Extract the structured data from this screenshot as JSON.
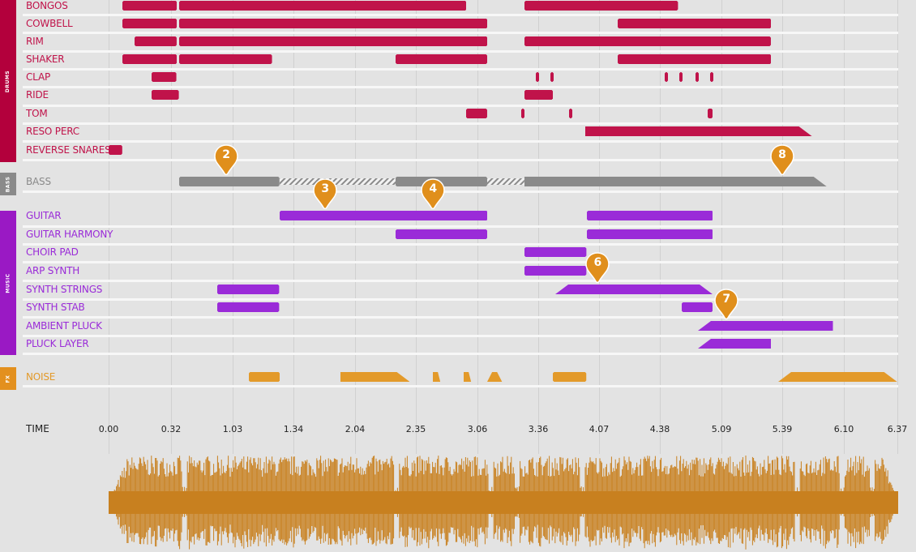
{
  "sections": [
    {
      "id": "drums",
      "label": "DRUMS",
      "color": "#b3003c"
    },
    {
      "id": "bass",
      "label": "BASS",
      "color": "#8a8a8a"
    },
    {
      "id": "music",
      "label": "MUSIC",
      "color": "#9a19c4"
    },
    {
      "id": "fx",
      "label": "FX",
      "color": "#e3901e"
    }
  ],
  "colors": {
    "drums": "#c0134a",
    "bass": "#8a8a8a",
    "music": "#9a2bd8",
    "fx": "#e39a2a",
    "marker": "#e08f1c",
    "waveform": "#c8801f",
    "background": "#e3e3e3"
  },
  "tracks": [
    {
      "label": "BONGOS",
      "section": "drums",
      "clips": [
        [
          0.11,
          0.55
        ],
        [
          0.57,
          2.89
        ],
        [
          3.36,
          4.6
        ]
      ]
    },
    {
      "label": "COWBELL",
      "section": "drums",
      "clips": [
        [
          0.11,
          0.55
        ],
        [
          0.57,
          3.06
        ],
        [
          4.11,
          5.35
        ]
      ]
    },
    {
      "label": "RIM",
      "section": "drums",
      "clips": [
        [
          0.21,
          0.55
        ],
        [
          0.57,
          3.06
        ],
        [
          3.36,
          5.35
        ]
      ]
    },
    {
      "label": "SHAKER",
      "section": "drums",
      "clips": [
        [
          0.11,
          0.55
        ],
        [
          0.57,
          1.32
        ],
        [
          2.32,
          3.06
        ],
        [
          4.11,
          5.35
        ]
      ]
    },
    {
      "label": "CLAP",
      "section": "drums",
      "clips": [
        [
          0.35,
          0.55
        ],
        [
          3.45,
          3.47
        ],
        [
          3.57,
          3.59
        ],
        [
          4.49,
          4.51
        ],
        [
          4.61,
          4.63
        ],
        [
          4.74,
          4.76
        ],
        [
          4.86,
          4.88
        ]
      ]
    },
    {
      "label": "RIDE",
      "section": "drums",
      "clips": [
        [
          0.35,
          0.57
        ],
        [
          3.36,
          3.59
        ]
      ]
    },
    {
      "label": "TOM",
      "section": "drums",
      "clips": [
        [
          2.89,
          3.06
        ],
        [
          3.33,
          3.35
        ],
        [
          3.72,
          3.74
        ],
        [
          4.84,
          4.88
        ]
      ]
    },
    {
      "label": "RESO PERC",
      "section": "drums",
      "clips": [
        [
          3.85,
          5.68,
          "ramp-down"
        ]
      ]
    },
    {
      "label": "REVERSE SNARES",
      "section": "drums",
      "clips": [
        [
          0.0,
          0.11
        ]
      ]
    },
    {
      "label": "BASS",
      "section": "bass",
      "clips": [
        [
          0.57,
          1.38
        ],
        [
          1.38,
          2.32,
          "hatch"
        ],
        [
          2.32,
          3.06
        ],
        [
          3.06,
          3.36,
          "hatch"
        ],
        [
          3.36,
          5.8,
          "ramp-down"
        ]
      ]
    },
    {
      "label": "GUITAR",
      "section": "music",
      "clips": [
        [
          1.38,
          3.06
        ],
        [
          3.86,
          4.88
        ]
      ]
    },
    {
      "label": "GUITAR HARMONY",
      "section": "music",
      "clips": [
        [
          2.32,
          3.06
        ],
        [
          3.86,
          4.88
        ]
      ]
    },
    {
      "label": "CHOIR PAD",
      "section": "music",
      "clips": [
        [
          3.36,
          3.86
        ]
      ]
    },
    {
      "label": "ARP SYNTH",
      "section": "music",
      "clips": [
        [
          3.36,
          3.86
        ]
      ]
    },
    {
      "label": "SYNTH STRINGS",
      "section": "music",
      "clips": [
        [
          0.88,
          1.38
        ],
        [
          3.61,
          4.88,
          "ramp-both"
        ]
      ]
    },
    {
      "label": "SYNTH STAB",
      "section": "music",
      "clips": [
        [
          0.88,
          1.38
        ],
        [
          4.63,
          4.88
        ]
      ]
    },
    {
      "label": "AMBIENT PLUCK",
      "section": "music",
      "clips": [
        [
          4.76,
          5.85,
          "ramp-up"
        ]
      ]
    },
    {
      "label": "PLUCK LAYER",
      "section": "music",
      "clips": [
        [
          4.76,
          5.35,
          "ramp-up"
        ]
      ]
    },
    {
      "label": "NOISE",
      "section": "fx",
      "clips": [
        [
          1.13,
          1.38
        ],
        [
          1.87,
          2.43,
          "ramp-down"
        ],
        [
          2.62,
          2.68,
          "ramp-down"
        ],
        [
          2.87,
          2.93,
          "ramp-down"
        ],
        [
          3.06,
          3.18,
          "ramp-both"
        ],
        [
          3.59,
          3.86
        ],
        [
          5.41,
          6.37,
          "ramp-both"
        ]
      ]
    }
  ],
  "time_axis": {
    "title": "TIME",
    "ticks": [
      "0.00",
      "0.32",
      "1.03",
      "1.34",
      "2.04",
      "2.35",
      "3.06",
      "3.36",
      "4.07",
      "4.38",
      "5.09",
      "5.39",
      "6.10",
      "6.37"
    ]
  },
  "markers": [
    {
      "number": "2",
      "track": "BASS",
      "at": 0.95
    },
    {
      "number": "3",
      "track": "GUITAR",
      "at": 1.75
    },
    {
      "number": "4",
      "track": "GUITAR",
      "at": 2.62
    },
    {
      "number": "6",
      "track": "SYNTH STRINGS",
      "at": 3.95
    },
    {
      "number": "7",
      "track": "AMBIENT PLUCK",
      "at": 4.99
    },
    {
      "number": "8",
      "track": "BASS",
      "at": 5.44
    }
  ]
}
